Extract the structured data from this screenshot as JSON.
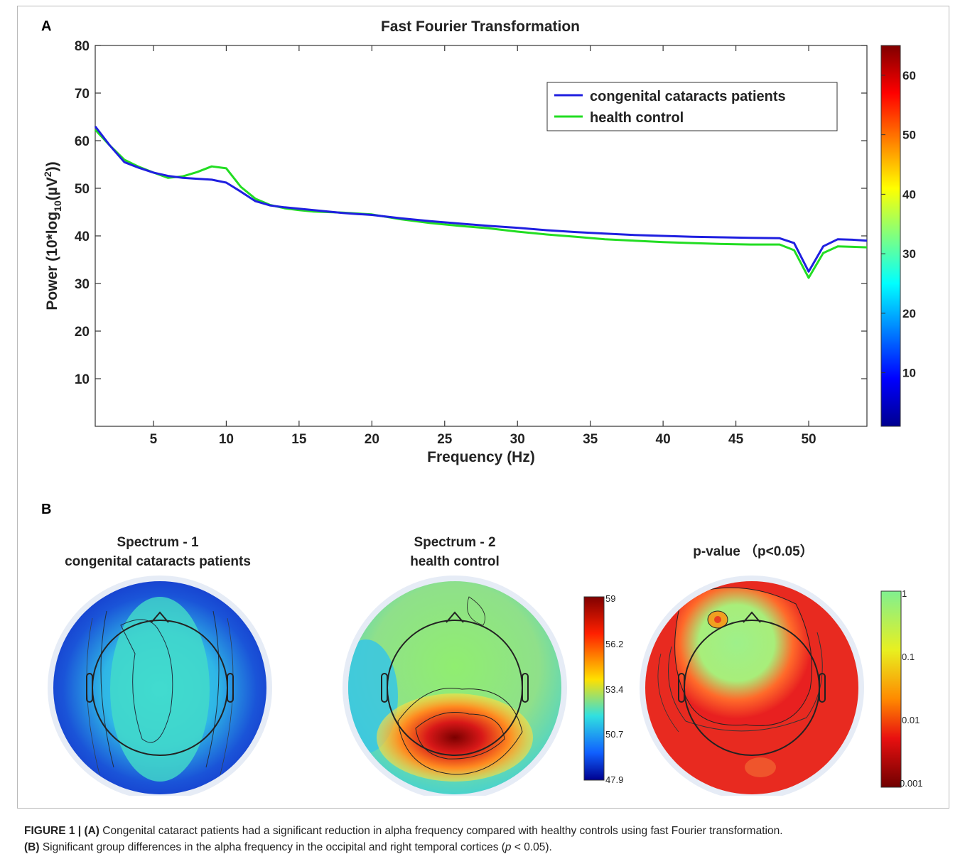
{
  "panel_a": {
    "letter": "A"
  },
  "panel_b": {
    "letter": "B",
    "maps": [
      {
        "title_line1": "Spectrum - 1",
        "title_line2": "congenital cataracts patients"
      },
      {
        "title_line1": "Spectrum - 2",
        "title_line2": "health control"
      },
      {
        "title_line1": "p-value （p<0.05）",
        "title_line2": ""
      }
    ],
    "colorbar_spectrum": {
      "ticks": [
        "59",
        "56.2",
        "53.4",
        "50.7",
        "47.9"
      ]
    },
    "colorbar_pvalue": {
      "ticks": [
        "1",
        "0.1",
        "0.01",
        "0.001"
      ]
    }
  },
  "caption": {
    "label": "FIGURE 1 |",
    "a_tag": "(A)",
    "a_text": " Congenital cataract patients had a significant reduction in alpha frequency compared with healthy controls using fast Fourier transformation.",
    "b_tag": "(B)",
    "b_text_pre": " Significant group differences in the alpha frequency in the occipital and right temporal cortices (",
    "b_p": "p",
    "b_text_post": " < 0.05)."
  },
  "chart_data": {
    "type": "line",
    "title": "Fast Fourier Transformation",
    "xlabel": "Frequency (Hz)",
    "ylabel": "Power (10*log10(µV²))",
    "xlim": [
      1,
      54
    ],
    "ylim": [
      0,
      80
    ],
    "xticks": [
      5,
      10,
      15,
      20,
      25,
      30,
      35,
      40,
      45,
      50
    ],
    "yticks": [
      10,
      20,
      30,
      40,
      50,
      60,
      70,
      80
    ],
    "legend_position": "top-right",
    "colorbar": {
      "range": [
        1,
        65
      ],
      "ticks": [
        10,
        20,
        30,
        40,
        50,
        60
      ]
    },
    "series": [
      {
        "name": "congenital cataracts patients",
        "color": "#1f1fe0",
        "x": [
          1,
          2,
          3,
          4,
          5,
          6,
          7,
          8,
          9,
          10,
          11,
          12,
          13,
          14,
          15,
          16,
          17,
          18,
          19,
          20,
          22,
          24,
          26,
          28,
          30,
          32,
          34,
          36,
          38,
          40,
          42,
          44,
          46,
          48,
          49,
          50,
          51,
          52,
          53,
          54
        ],
        "y": [
          63,
          59,
          55.5,
          54.3,
          53.3,
          52.6,
          52.2,
          52,
          51.8,
          51.2,
          49.3,
          47.3,
          46.4,
          46,
          45.7,
          45.4,
          45.1,
          44.8,
          44.6,
          44.4,
          43.7,
          43.1,
          42.6,
          42.1,
          41.7,
          41.2,
          40.8,
          40.5,
          40.2,
          40,
          39.8,
          39.7,
          39.6,
          39.5,
          38.5,
          32.5,
          37.8,
          39.3,
          39.2,
          39
        ]
      },
      {
        "name": "health control",
        "color": "#22dd22",
        "x": [
          1,
          2,
          3,
          4,
          5,
          6,
          7,
          8,
          9,
          10,
          11,
          12,
          13,
          14,
          15,
          16,
          17,
          18,
          19,
          20,
          22,
          24,
          26,
          28,
          30,
          32,
          34,
          36,
          38,
          40,
          42,
          44,
          46,
          48,
          49,
          50,
          51,
          52,
          53,
          54
        ],
        "y": [
          62.3,
          59,
          56,
          54.5,
          53.3,
          52.2,
          52.5,
          53.4,
          54.6,
          54.2,
          50.3,
          47.8,
          46.5,
          45.8,
          45.4,
          45.1,
          45,
          44.9,
          44.7,
          44.5,
          43.5,
          42.7,
          42.1,
          41.6,
          40.9,
          40.3,
          39.8,
          39.3,
          39,
          38.7,
          38.5,
          38.3,
          38.2,
          38.2,
          37,
          31.2,
          36.4,
          37.8,
          37.7,
          37.6
        ]
      }
    ]
  }
}
